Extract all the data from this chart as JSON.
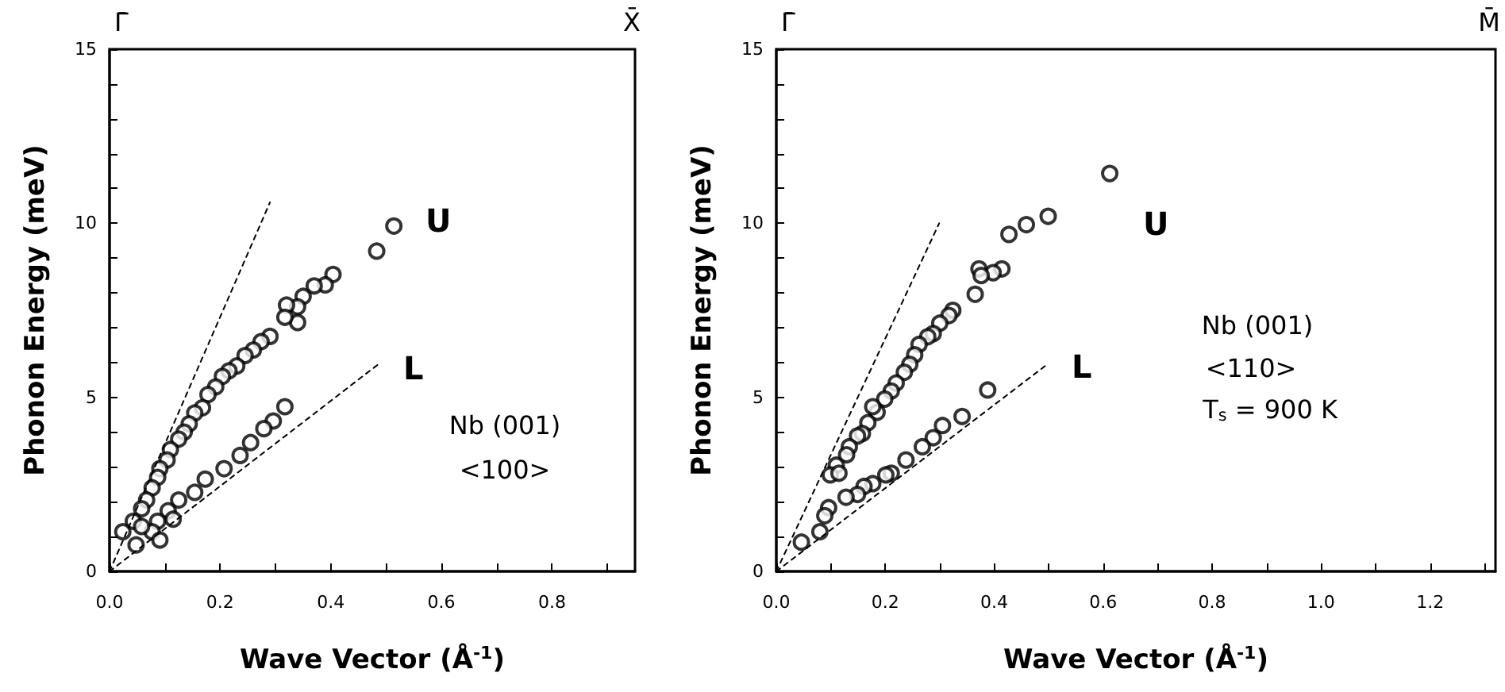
{
  "chart_data": [
    {
      "type": "scatter",
      "xlabel": "Wave Vector (Å$^{-1}$)",
      "ylabel": "Phonon Energy (meV)",
      "marker": "circle",
      "xlim": [
        0,
        0.95
      ],
      "ylim": [
        0,
        15
      ],
      "xticks": [
        {
          "value": 0,
          "label": "0.0"
        },
        {
          "value": 0.1,
          "label": null
        },
        0.2,
        {
          "value": 0.3,
          "label": null
        },
        0.4,
        {
          "value": 0.5,
          "label": null
        },
        0.6,
        {
          "value": 0.7,
          "label": null
        },
        0.8,
        {
          "value": 0.9,
          "label": null
        }
      ],
      "yticks": [
        0,
        {
          "value": 1,
          "label": null
        },
        {
          "value": 2,
          "label": null
        },
        {
          "value": 3,
          "label": null
        },
        {
          "value": 4,
          "label": null
        },
        5,
        {
          "value": 6,
          "label": null
        },
        {
          "value": 7,
          "label": null
        },
        {
          "value": 8,
          "label": null
        },
        {
          "value": 9,
          "label": null
        },
        10,
        {
          "value": 11,
          "label": null
        },
        {
          "value": 12,
          "label": null
        },
        {
          "value": 13,
          "label": null
        },
        {
          "value": 14,
          "label": null
        },
        15
      ],
      "series": [
        {
          "color": "#000000",
          "x": [
            0.514,
            0.483,
            0.404,
            0.39,
            0.37,
            0.35,
            0.34,
            0.32,
            0.34,
            0.317,
            0.29,
            0.274,
            0.26,
            0.245,
            0.23,
            0.216,
            0.204,
            0.192,
            0.178,
            0.168,
            0.154,
            0.144,
            0.135,
            0.125,
            0.11,
            0.104,
            0.091,
            0.087,
            0.077,
            0.067,
            0.058,
            0.043,
            0.024,
            0.048
          ],
          "values": [
            9.92,
            9.2,
            8.53,
            8.23,
            8.2,
            7.9,
            7.6,
            7.65,
            7.15,
            7.3,
            6.75,
            6.6,
            6.36,
            6.2,
            5.9,
            5.76,
            5.6,
            5.3,
            5.08,
            4.7,
            4.55,
            4.24,
            4.0,
            3.8,
            3.5,
            3.2,
            2.95,
            2.7,
            2.4,
            2.05,
            1.8,
            1.44,
            1.14,
            0.76
          ]
        },
        {
          "color": "#000000",
          "x": [
            0.317,
            0.296,
            0.279,
            0.255,
            0.236,
            0.207,
            0.173,
            0.154,
            0.125,
            0.106,
            0.087,
            0.077,
            0.058,
            0.091,
            0.115
          ],
          "values": [
            4.73,
            4.32,
            4.1,
            3.7,
            3.33,
            2.95,
            2.65,
            2.27,
            2.05,
            1.74,
            1.44,
            1.14,
            1.29,
            0.9,
            1.5
          ]
        },
        {
          "type": "line",
          "color": "#000000",
          "line_style": "dashed",
          "marker": "none",
          "x": [
            0,
            0.29
          ],
          "values": [
            0,
            10.6
          ]
        },
        {
          "type": "line",
          "color": "#000000",
          "line_style": "dashed",
          "marker": "none",
          "x": [
            0,
            0.49
          ],
          "values": [
            0,
            6.0
          ]
        }
      ],
      "annotations": [
        "Γ̄",
        "X̄",
        "U",
        "L",
        "Nb (001)",
        "<100>"
      ]
    },
    {
      "type": "scatter",
      "xlabel": "Wave Vector (Å$^{-1}$)",
      "ylabel": "Phonon Energy (meV)",
      "marker": "circle",
      "xlim": [
        0,
        1.32
      ],
      "ylim": [
        0,
        15
      ],
      "xticks": [
        {
          "value": 0,
          "label": "0.0"
        },
        {
          "value": 0.1,
          "label": null
        },
        0.2,
        {
          "value": 0.3,
          "label": null
        },
        0.4,
        {
          "value": 0.5,
          "label": null
        },
        0.6,
        {
          "value": 0.7,
          "label": null
        },
        0.8,
        {
          "value": 0.9,
          "label": null
        },
        {
          "value": 1.0,
          "label": "1.0"
        },
        {
          "value": 1.1,
          "label": null
        },
        1.2,
        {
          "value": 1.3,
          "label": null
        }
      ],
      "yticks": [
        0,
        {
          "value": 1,
          "label": null
        },
        {
          "value": 2,
          "label": null
        },
        {
          "value": 3,
          "label": null
        },
        {
          "value": 4,
          "label": null
        },
        5,
        {
          "value": 6,
          "label": null
        },
        {
          "value": 7,
          "label": null
        },
        {
          "value": 8,
          "label": null
        },
        {
          "value": 9,
          "label": null
        },
        10,
        {
          "value": 11,
          "label": null
        },
        {
          "value": 12,
          "label": null
        },
        {
          "value": 13,
          "label": null
        },
        {
          "value": 14,
          "label": null
        },
        15
      ],
      "series": [
        {
          "color": "#000000",
          "x": [
            0.612,
            0.499,
            0.459,
            0.427,
            0.414,
            0.398,
            0.372,
            0.376,
            0.365,
            0.324,
            0.317,
            0.3,
            0.288,
            0.278,
            0.262,
            0.254,
            0.245,
            0.235,
            0.22,
            0.211,
            0.199,
            0.185,
            0.177,
            0.168,
            0.158,
            0.149,
            0.134,
            0.129,
            0.11,
            0.099,
            0.115
          ],
          "values": [
            11.43,
            10.2,
            9.96,
            9.68,
            8.69,
            8.58,
            8.69,
            8.5,
            7.96,
            7.5,
            7.35,
            7.13,
            6.83,
            6.74,
            6.52,
            6.22,
            5.95,
            5.72,
            5.41,
            5.18,
            4.95,
            4.57,
            4.73,
            4.27,
            3.96,
            3.89,
            3.58,
            3.35,
            3.05,
            2.77,
            2.82
          ]
        },
        {
          "color": "#000000",
          "x": [
            0.388,
            0.341,
            0.305,
            0.288,
            0.268,
            0.238,
            0.211,
            0.201,
            0.177,
            0.161,
            0.149,
            0.128,
            0.096,
            0.089,
            0.08,
            0.046
          ],
          "values": [
            5.21,
            4.45,
            4.19,
            3.84,
            3.58,
            3.2,
            2.82,
            2.77,
            2.52,
            2.44,
            2.21,
            2.13,
            1.83,
            1.6,
            1.14,
            0.84
          ]
        },
        {
          "type": "line",
          "color": "#000000",
          "line_style": "dashed",
          "marker": "none",
          "x": [
            0,
            0.299
          ],
          "values": [
            0,
            10.0
          ]
        },
        {
          "type": "line",
          "color": "#000000",
          "line_style": "dashed",
          "marker": "none",
          "x": [
            0,
            0.5
          ],
          "values": [
            0,
            5.98
          ]
        }
      ],
      "annotations": [
        "Γ̄",
        "M̄",
        "U",
        "L",
        "Nb (001)",
        "<110>",
        "T$_{s}$ = 900 K"
      ]
    }
  ]
}
